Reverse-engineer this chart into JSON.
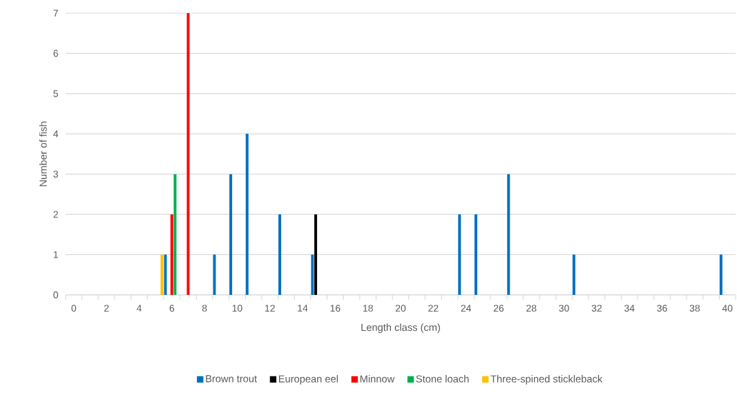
{
  "chart_data": {
    "type": "bar",
    "xlabel": "Length class (cm)",
    "ylabel": "Number of fish",
    "categories": [
      "0",
      null,
      "2",
      null,
      "4",
      null,
      "6",
      null,
      "8",
      null,
      "10",
      null,
      "12",
      null,
      "14",
      null,
      "16",
      null,
      "18",
      null,
      "20",
      null,
      "22",
      null,
      "24",
      null,
      "26",
      null,
      "28",
      null,
      "30",
      null,
      "32",
      null,
      "34",
      null,
      "36",
      null,
      "38",
      null,
      "40"
    ],
    "series": [
      {
        "name": "Brown trout",
        "color": "#0070c0",
        "values": [
          0,
          0,
          0,
          0,
          0,
          0,
          1,
          0,
          0,
          1,
          3,
          4,
          0,
          2,
          0,
          1,
          0,
          0,
          0,
          0,
          0,
          0,
          0,
          0,
          2,
          2,
          0,
          3,
          0,
          0,
          0,
          1,
          0,
          0,
          0,
          0,
          0,
          0,
          0,
          0,
          1
        ]
      },
      {
        "name": "European eel",
        "color": "#000000",
        "values": [
          0,
          0,
          0,
          0,
          0,
          0,
          0,
          0,
          0,
          0,
          0,
          0,
          0,
          0,
          0,
          2,
          0,
          0,
          0,
          0,
          0,
          0,
          0,
          0,
          0,
          0,
          0,
          0,
          0,
          0,
          0,
          0,
          0,
          0,
          0,
          0,
          0,
          0,
          0,
          0,
          0
        ]
      },
      {
        "name": "Minnow",
        "color": "#ff0000",
        "values": [
          0,
          0,
          0,
          0,
          0,
          0,
          2,
          7,
          0,
          0,
          0,
          0,
          0,
          0,
          0,
          0,
          0,
          0,
          0,
          0,
          0,
          0,
          0,
          0,
          0,
          0,
          0,
          0,
          0,
          0,
          0,
          0,
          0,
          0,
          0,
          0,
          0,
          0,
          0,
          0,
          0
        ]
      },
      {
        "name": "Stone loach",
        "color": "#00b050",
        "values": [
          0,
          0,
          0,
          0,
          0,
          0,
          3,
          0,
          0,
          0,
          0,
          0,
          0,
          0,
          0,
          0,
          0,
          0,
          0,
          0,
          0,
          0,
          0,
          0,
          0,
          0,
          0,
          0,
          0,
          0,
          0,
          0,
          0,
          0,
          0,
          0,
          0,
          0,
          0,
          0,
          0
        ]
      },
      {
        "name": "Three-spined stickleback",
        "color": "#ffc000",
        "values": [
          0,
          0,
          0,
          0,
          0,
          1,
          0,
          0,
          0,
          0,
          0,
          0,
          0,
          0,
          0,
          0,
          0,
          0,
          0,
          0,
          0,
          0,
          0,
          0,
          0,
          0,
          0,
          0,
          0,
          0,
          0,
          0,
          0,
          0,
          0,
          0,
          0,
          0,
          0,
          0,
          0
        ]
      }
    ],
    "ylim": [
      0,
      7
    ],
    "yticks": [
      0,
      1,
      2,
      3,
      4,
      5,
      6,
      7
    ],
    "grid": "y",
    "legend": "bottom"
  }
}
